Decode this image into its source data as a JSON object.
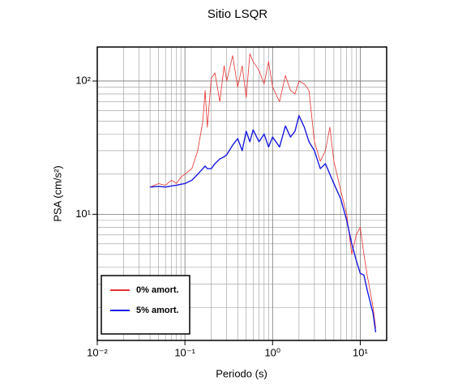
{
  "chart_data": {
    "type": "line",
    "title": "Sitio LSQR",
    "x_label": "Periodo (s)",
    "y_label": "PSA (cm/s²)",
    "x_scale": "log",
    "y_scale": "log",
    "grid": true,
    "legend_position": "lower left",
    "xlim": [
      0.01,
      20
    ],
    "ylim": [
      1.13,
      180
    ],
    "xticks": [
      {
        "value": 0.01,
        "label": "10⁻²"
      },
      {
        "value": 0.1,
        "label": "10⁻¹"
      },
      {
        "value": 1,
        "label": "10⁰"
      },
      {
        "value": 10,
        "label": "10¹"
      }
    ],
    "yticks": [
      {
        "value": 10,
        "label": "10¹"
      },
      {
        "value": 100,
        "label": "10²"
      }
    ],
    "x": [
      0.04,
      0.05,
      0.06,
      0.07,
      0.08,
      0.09,
      0.1,
      0.12,
      0.14,
      0.16,
      0.17,
      0.18,
      0.2,
      0.22,
      0.25,
      0.28,
      0.3,
      0.35,
      0.4,
      0.45,
      0.5,
      0.55,
      0.6,
      0.7,
      0.8,
      0.9,
      1.0,
      1.2,
      1.4,
      1.6,
      1.8,
      2.0,
      2.3,
      2.6,
      3.0,
      3.5,
      4,
      4.5,
      5,
      6,
      7,
      8,
      9,
      10,
      11,
      12,
      14,
      15
    ],
    "series": [
      {
        "name": "0% amort.",
        "color": "#e8312f",
        "width": 0.8,
        "values": [
          16,
          17,
          16.5,
          18,
          17,
          19,
          20,
          22,
          30,
          50,
          85,
          45,
          105,
          115,
          70,
          130,
          100,
          155,
          90,
          130,
          75,
          160,
          140,
          120,
          95,
          140,
          90,
          70,
          110,
          85,
          80,
          100,
          95,
          85,
          35,
          25,
          30,
          45,
          25,
          15,
          10,
          5,
          7,
          8,
          5,
          3.5,
          2,
          1.4
        ]
      },
      {
        "name": "5% amort.",
        "color": "#1a1adf",
        "width": 1.4,
        "values": [
          16,
          16.2,
          16,
          16.3,
          16.5,
          16.8,
          17,
          18,
          20,
          22,
          23,
          22,
          22,
          24,
          26,
          27,
          28,
          33,
          37,
          30,
          42,
          35,
          43,
          35,
          40,
          32,
          38,
          32,
          46,
          38,
          42,
          55,
          45,
          35,
          30,
          22,
          24,
          20,
          17,
          13,
          9,
          6,
          4.5,
          3.6,
          3.5,
          2.7,
          1.8,
          1.3
        ]
      }
    ]
  }
}
